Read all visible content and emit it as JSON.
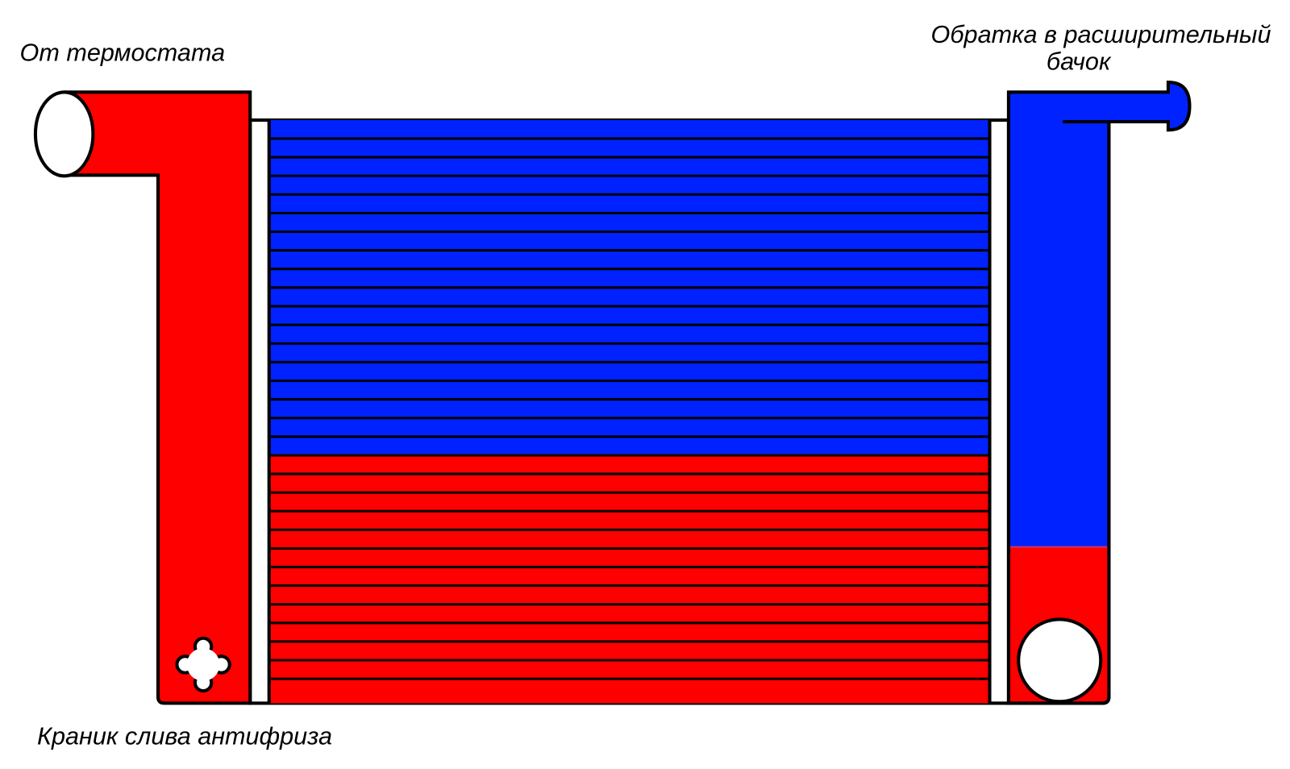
{
  "labels": {
    "inlet": "От термостата",
    "outlet": [
      "Обратка в расширительный",
      "бачок"
    ],
    "drain": "Краник слива антифриза"
  }
}
